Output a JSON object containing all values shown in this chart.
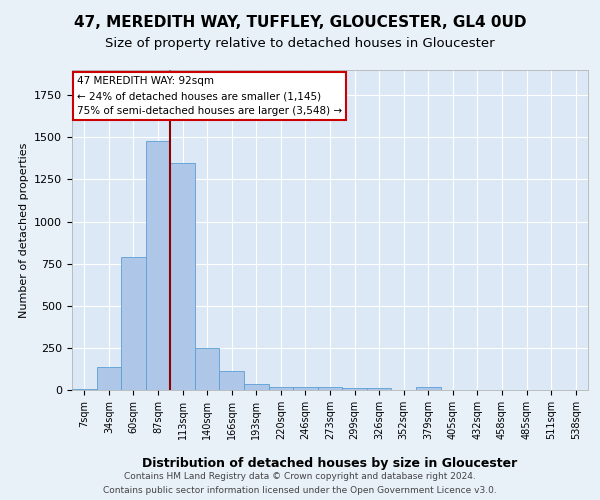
{
  "title1": "47, MEREDITH WAY, TUFFLEY, GLOUCESTER, GL4 0UD",
  "title2": "Size of property relative to detached houses in Gloucester",
  "xlabel": "Distribution of detached houses by size in Gloucester",
  "ylabel": "Number of detached properties",
  "bin_labels": [
    "7sqm",
    "34sqm",
    "60sqm",
    "87sqm",
    "113sqm",
    "140sqm",
    "166sqm",
    "193sqm",
    "220sqm",
    "246sqm",
    "273sqm",
    "299sqm",
    "326sqm",
    "352sqm",
    "379sqm",
    "405sqm",
    "432sqm",
    "458sqm",
    "485sqm",
    "511sqm",
    "538sqm"
  ],
  "bar_heights": [
    5,
    135,
    790,
    1480,
    1350,
    250,
    115,
    35,
    20,
    20,
    15,
    10,
    10,
    0,
    20,
    0,
    0,
    0,
    0,
    0,
    0
  ],
  "bar_color": "#aec6e8",
  "bar_edge_color": "#5a9fd4",
  "red_line_x": 3.5,
  "red_line_color": "#8b0000",
  "annotation_line1": "47 MEREDITH WAY: 92sqm",
  "annotation_line2": "← 24% of detached houses are smaller (1,145)",
  "annotation_line3": "75% of semi-detached houses are larger (3,548) →",
  "annotation_box_color": "#ffffff",
  "annotation_box_edge": "#cc0000",
  "ylim": [
    0,
    1900
  ],
  "footer1": "Contains HM Land Registry data © Crown copyright and database right 2024.",
  "footer2": "Contains public sector information licensed under the Open Government Licence v3.0.",
  "background_color": "#e8f0f8",
  "plot_background": "#dce8f5"
}
